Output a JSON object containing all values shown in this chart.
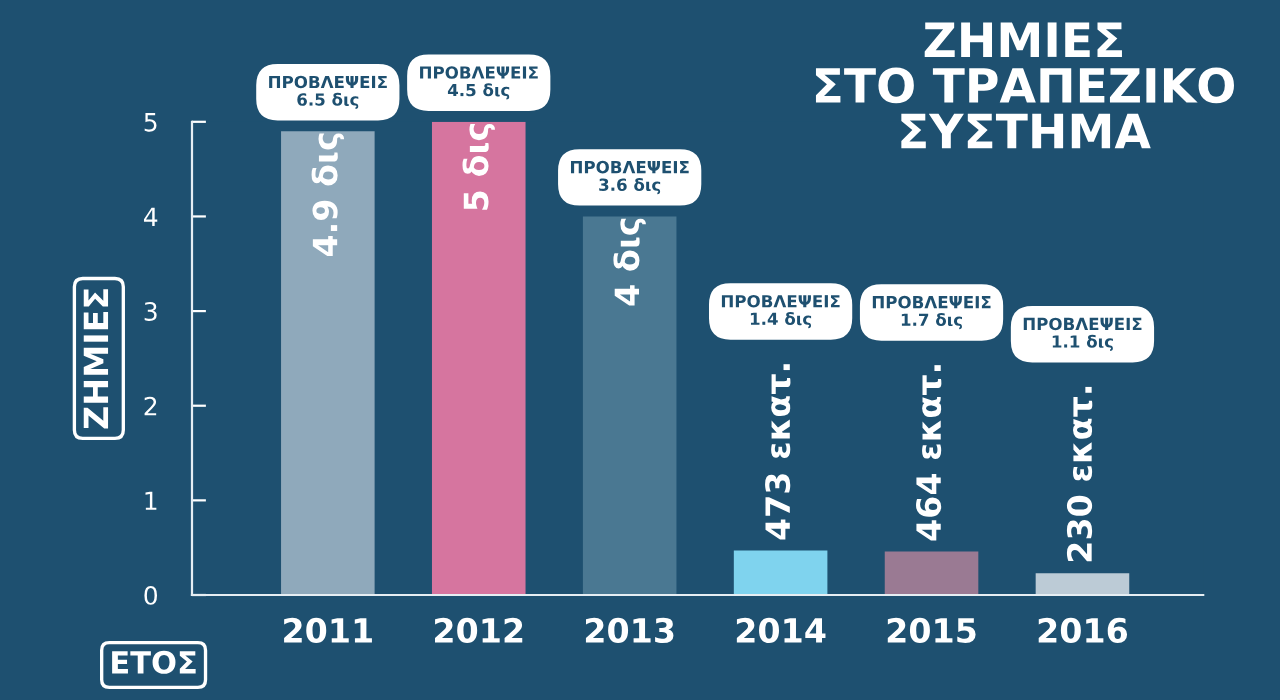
{
  "chart_data": {
    "type": "bar",
    "title": "ΖΗΜΙΕΣ\nΣΤΟ ΤΡΑΠΕΖΙΚΟ\nΣΥΣΤΗΜΑ",
    "xlabel": "ΕΤΟΣ",
    "ylabel": "ΖΗΜΙΕΣ",
    "categories": [
      "2011",
      "2012",
      "2013",
      "2014",
      "2015",
      "2016"
    ],
    "values": [
      4.9,
      5,
      4,
      0.47,
      0.46,
      0.23
    ],
    "colors": [
      "#8fa9bb",
      "#d6759f",
      "#4a7892",
      "#7fd3ee",
      "#9a7a93",
      "#bccbd6"
    ],
    "annotations": [
      "ΠΡΟΒΛΕΨΕΙΣ\n6.5 δις",
      "ΠΡΟΒΛΕΨΕΙΣ\n4.5 δις",
      "ΠΡΟΒΛΕΨΕΙΣ\n3.6 δις",
      "ΠΡΟΒΛΕΨΕΙΣ\n1.4 δις",
      "ΠΡΟΒΛΕΨΕΙΣ\n1.7 δις",
      "ΠΡΟΒΛΕΨΕΙΣ\n1.1 δις",
      {
        "text": "4.9 δις",
        "x": "2011",
        "y": 4.9
      },
      {
        "text": "5 δις",
        "x": "2012",
        "y": 5
      },
      {
        "text": "4 δις",
        "x": "2013",
        "y": 4
      },
      {
        "text": "473 εκατ.",
        "x": "2014",
        "y": 0.47
      },
      {
        "text": "464 εκατ.",
        "x": "2015",
        "y": 0.46
      },
      {
        "text": "230 εκατ.",
        "x": "2016",
        "y": 0.23
      }
    ],
    "ylim": [
      0,
      5
    ],
    "yticks": [
      0,
      1,
      2,
      3,
      4,
      5
    ],
    "grid": false
  }
}
